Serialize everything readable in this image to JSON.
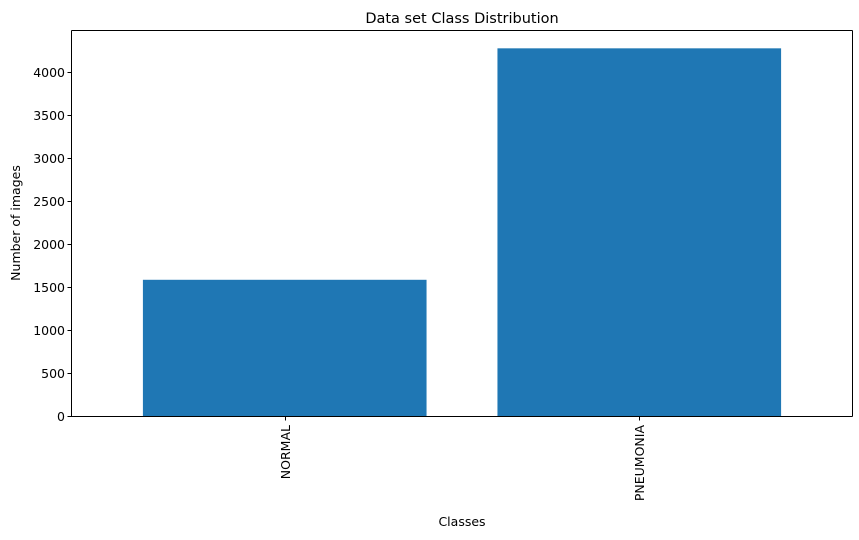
{
  "chart_data": {
    "type": "bar",
    "title": "Data set Class Distribution",
    "xlabel": "Classes",
    "ylabel": "Number of images",
    "categories": [
      "NORMAL",
      "PNEUMONIA"
    ],
    "values": [
      1583,
      4273
    ],
    "ylim": [
      0,
      4486
    ],
    "yticks": [
      0,
      500,
      1000,
      1500,
      2000,
      2500,
      3000,
      3500,
      4000
    ],
    "grid": false,
    "bar_color": "#1f77b4",
    "xtick_rotation": "vertical"
  }
}
